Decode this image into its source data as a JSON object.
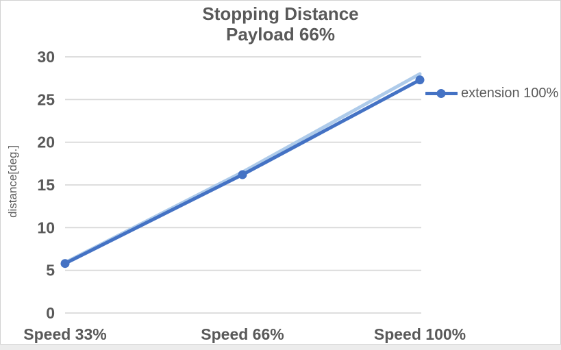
{
  "chart": {
    "title_line1": "Stopping Distance",
    "title_line2": "Payload 66%",
    "y_axis_title": "distance[deg.]",
    "legend": {
      "label": "extension 100%"
    },
    "colors": {
      "series": "#4472c4",
      "glow": "#aecbea",
      "gridline": "#d9d9d9",
      "text": "#595959",
      "frame_border": "#d2d2d2",
      "background": "#ffffff",
      "outside": "#ececec"
    }
  },
  "chart_data": {
    "type": "line",
    "title": "Stopping Distance Payload 66%",
    "categories": [
      "Speed 33%",
      "Speed 66%",
      "Speed 100%"
    ],
    "series": [
      {
        "name": "extension 100%",
        "values": [
          5.8,
          16.2,
          27.3
        ],
        "color": "#4472c4",
        "marker": "circle"
      }
    ],
    "glow_line": {
      "note": "light highlight line drawn just above main series",
      "values": [
        5.9,
        16.5,
        28.0
      ],
      "color": "#aecbea"
    },
    "xlabel": "",
    "ylabel": "distance[deg.]",
    "ylim": [
      0,
      30
    ],
    "ytick_step": 5,
    "grid": "horizontal",
    "legend_position": "right"
  }
}
